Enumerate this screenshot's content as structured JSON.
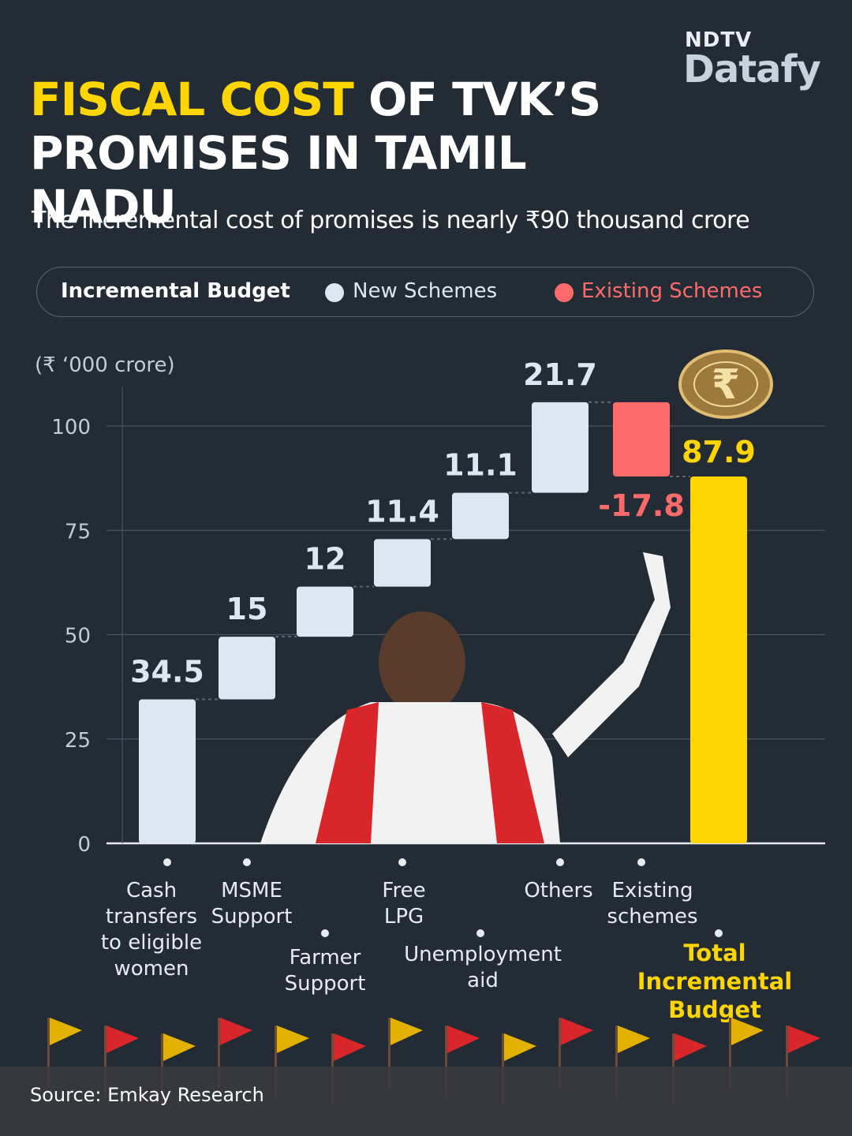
{
  "brand": {
    "top": "NDTV",
    "bottom": "Datafy"
  },
  "title": {
    "highlight": "FISCAL COST",
    "rest_line1": " OF TVK’S",
    "line2": "PROMISES IN TAMIL NADU"
  },
  "subtitle": "The incremental cost of promises is nearly ₹90 thousand crore",
  "legend": {
    "title": "Incremental Budget",
    "new": "New Schemes",
    "existing": "Existing Schemes"
  },
  "unit_label": "(₹ ‘000 crore)",
  "source": "Source: Emkay Research",
  "colors": {
    "background": "#232b35",
    "new": "#dbe7f1",
    "existing": "#ff6b6b",
    "total": "#ffd500",
    "grid": "#4a5360"
  },
  "chart_data": {
    "type": "waterfall",
    "ylim": [
      0,
      100
    ],
    "yticks": [
      0,
      25,
      50,
      75,
      100
    ],
    "grid": true,
    "legend_position": "top",
    "steps": [
      {
        "label": [
          "Cash",
          "transfers",
          "to eligible",
          "women"
        ],
        "value": 34.5,
        "value_label": "34.5",
        "kind": "new"
      },
      {
        "label": [
          "MSME",
          "Support"
        ],
        "value": 15,
        "value_label": "15",
        "kind": "new"
      },
      {
        "label": [
          "Farmer",
          "Support"
        ],
        "value": 12,
        "value_label": "12",
        "kind": "new"
      },
      {
        "label": [
          "Free",
          "LPG"
        ],
        "value": 11.4,
        "value_label": "11.4",
        "kind": "new"
      },
      {
        "label": [
          "Unemployment",
          "aid"
        ],
        "value": 11.1,
        "value_label": "11.1",
        "kind": "new"
      },
      {
        "label": [
          "Others"
        ],
        "value": 21.7,
        "value_label": "21.7",
        "kind": "new"
      },
      {
        "label": [
          "Existing",
          "schemes"
        ],
        "value": -17.8,
        "value_label": "-17.8",
        "kind": "existing"
      },
      {
        "label": [
          "Total",
          "Incremental",
          "Budget"
        ],
        "value": 87.9,
        "value_label": "87.9",
        "kind": "total"
      }
    ]
  }
}
